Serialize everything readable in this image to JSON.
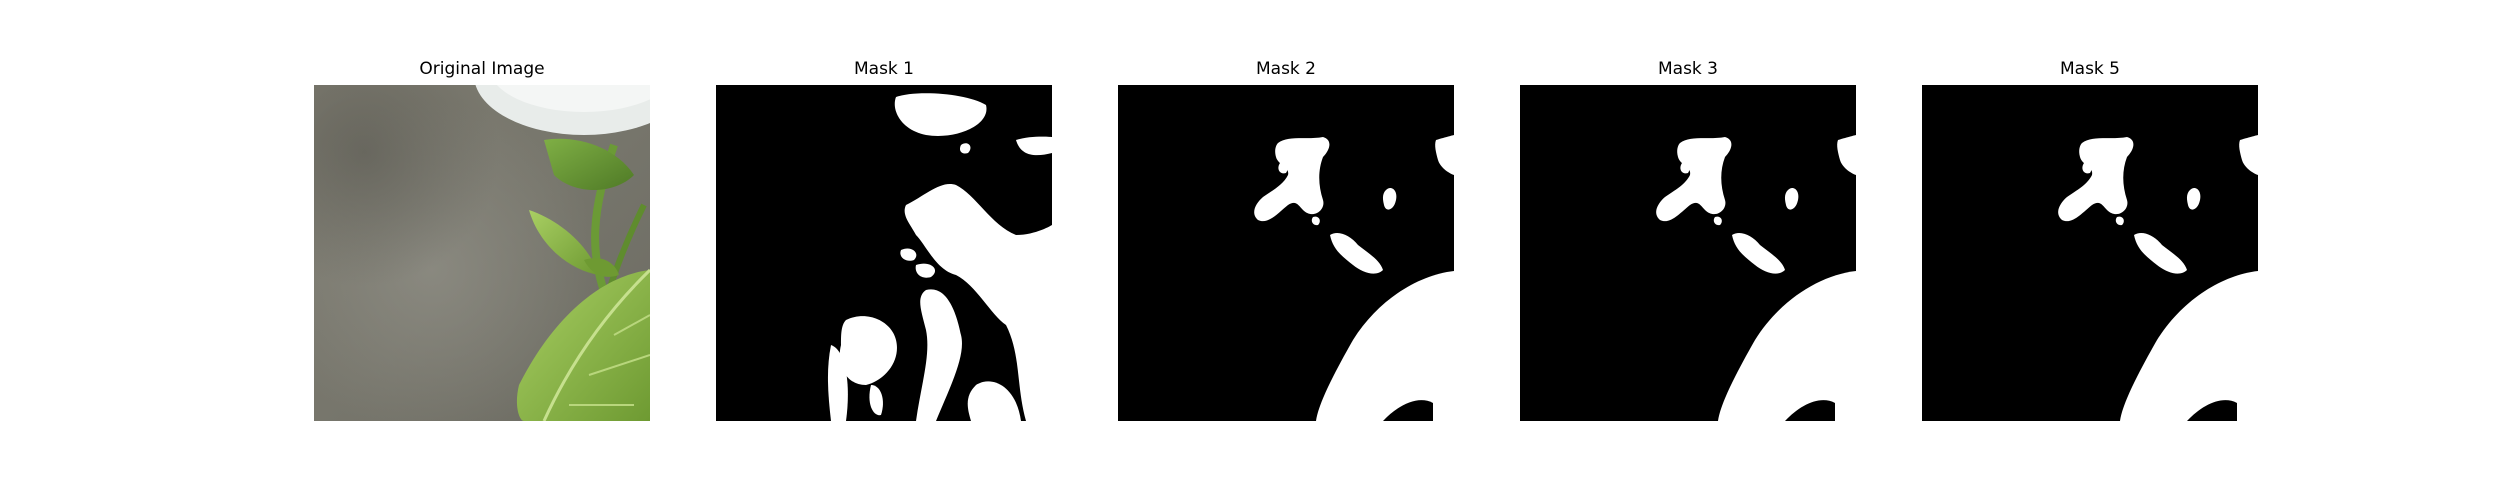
{
  "panels": [
    {
      "title": "Original Image",
      "content": "photo of green plant leaves against a grey blurred background with a white object at top"
    },
    {
      "title": "Mask 1",
      "content": "binary segmentation mask"
    },
    {
      "title": "Mask 2",
      "content": "binary segmentation mask"
    },
    {
      "title": "Mask 3",
      "content": "binary segmentation mask"
    },
    {
      "title": "Mask 5",
      "content": "binary segmentation mask"
    }
  ],
  "colors": {
    "background": "#ffffff",
    "mask_background": "#000000",
    "mask_foreground": "#ffffff",
    "leaf_green": "#8cb84a",
    "backdrop_grey": "#7c7c72"
  }
}
